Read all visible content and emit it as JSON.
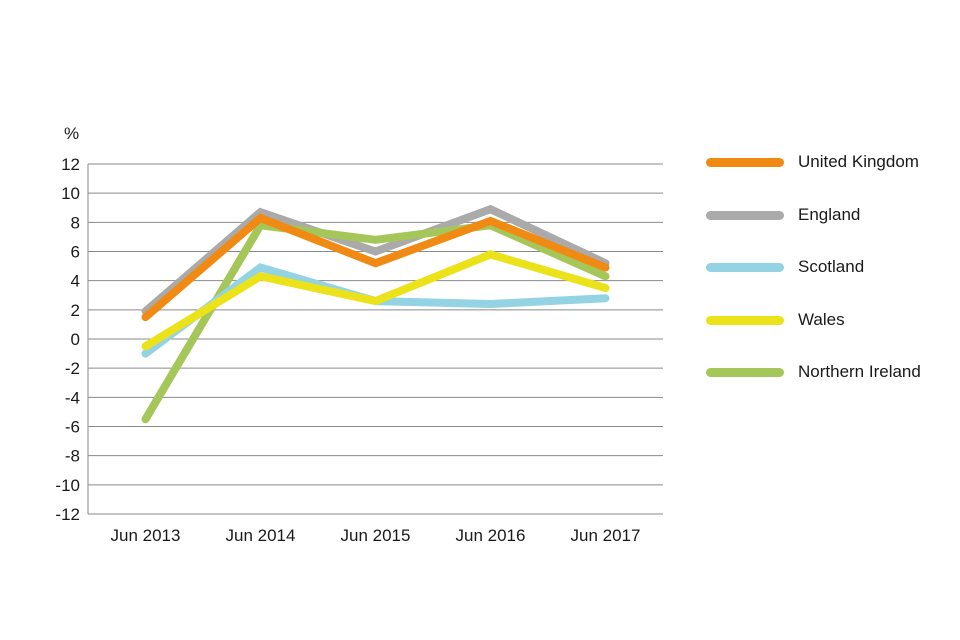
{
  "chart_data": {
    "type": "line",
    "ylabel": "%",
    "categories": [
      "Jun 2013",
      "Jun 2014",
      "Jun 2015",
      "Jun 2016",
      "Jun 2017"
    ],
    "ylim": [
      -12,
      12
    ],
    "yticks": [
      12,
      10,
      8,
      6,
      4,
      2,
      0,
      -2,
      -4,
      -6,
      -8,
      -10,
      -12
    ],
    "grid": true,
    "legend_position": "right",
    "series": [
      {
        "name": "England",
        "color": "#aaaaaa",
        "values": [
          1.9,
          8.7,
          6.0,
          8.9,
          5.2
        ]
      },
      {
        "name": "Northern Ireland",
        "color": "#a5c75a",
        "values": [
          -5.5,
          7.8,
          6.8,
          7.8,
          4.3
        ]
      },
      {
        "name": "Scotland",
        "color": "#94d3e4",
        "values": [
          -1.0,
          4.9,
          2.6,
          2.4,
          2.8
        ]
      },
      {
        "name": "Wales",
        "color": "#ece21a",
        "values": [
          -0.5,
          4.3,
          2.6,
          5.8,
          3.5
        ]
      },
      {
        "name": "United Kingdom",
        "color": "#f08a12",
        "values": [
          1.5,
          8.3,
          5.2,
          8.1,
          4.9
        ]
      }
    ],
    "legend_order": [
      "United Kingdom",
      "England",
      "Scotland",
      "Wales",
      "Northern Ireland"
    ]
  }
}
